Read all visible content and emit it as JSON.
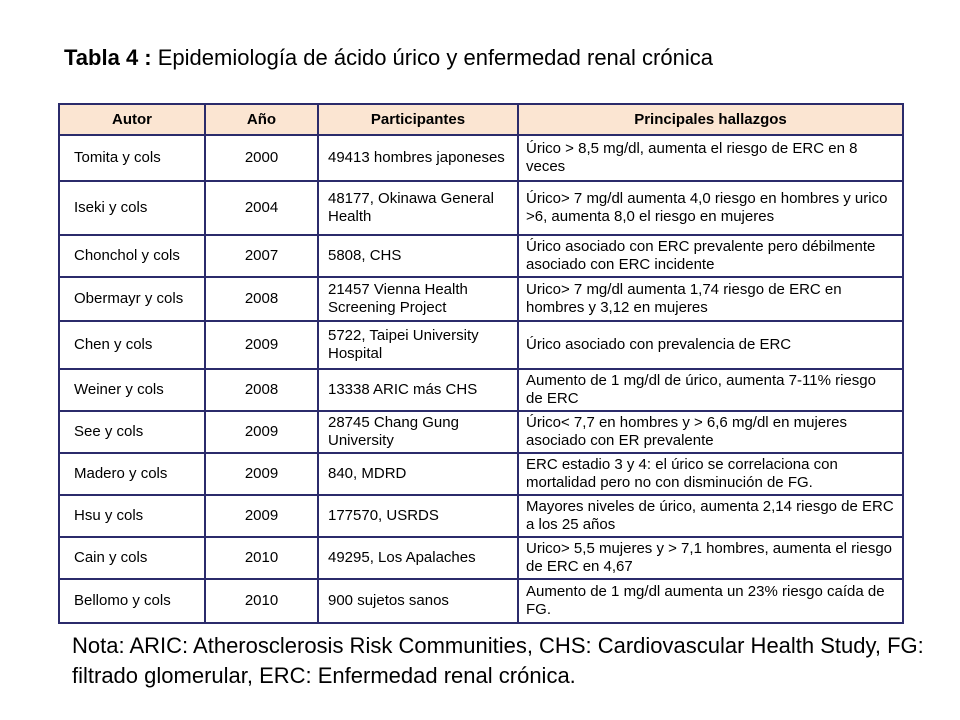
{
  "title": {
    "bold": "Tabla 4 :",
    "rest": " Epidemiología de ácido úrico y enfermedad renal crónica"
  },
  "table": {
    "headers": [
      "Autor",
      "Año",
      "Participantes",
      "Principales hallazgos"
    ],
    "rows": [
      {
        "author": "Tomita  y cols",
        "year": "2000",
        "participants": "49413 hombres japoneses",
        "findings": "Úrico > 8,5 mg/dl, aumenta el riesgo de ERC en 8 veces"
      },
      {
        "author": "Iseki y cols",
        "year": "2004",
        "participants": "48177, Okinawa General Health",
        "findings": "Úrico> 7 mg/dl aumenta 4,0 riesgo en hombres y urico >6, aumenta 8,0 el riesgo  en mujeres"
      },
      {
        "author": "Chonchol  y cols",
        "year": "2007",
        "participants": "5808, CHS",
        "findings": "Úrico asociado con ERC prevalente pero débilmente asociado con ERC incidente"
      },
      {
        "author": "Obermayr y cols",
        "year": "2008",
        "participants": "21457 Vienna Health Screening Project",
        "findings": "Urico> 7 mg/dl aumenta 1,74 riesgo de ERC en hombres y 3,12 en mujeres"
      },
      {
        "author": "Chen y cols",
        "year": "2009",
        "participants": "5722, Taipei University Hospital",
        "findings": "Úrico asociado con prevalencia de ERC"
      },
      {
        "author": "Weiner  y cols",
        "year": "2008",
        "participants": "13338 ARIC más CHS",
        "findings": "Aumento de 1 mg/dl de úrico, aumenta 7-11% riesgo de ERC"
      },
      {
        "author": "See y cols",
        "year": "2009",
        "participants": "28745 Chang Gung University",
        "findings": "Úrico< 7,7 en hombres y > 6,6 mg/dl en mujeres asociado con ER prevalente"
      },
      {
        "author": "Madero y cols",
        "year": "2009",
        "participants": "840, MDRD",
        "findings": "ERC estadio 3 y 4: el úrico se correlaciona con mortalidad pero no con disminución de FG."
      },
      {
        "author": "Hsu  y cols",
        "year": "2009",
        "participants": "177570, USRDS",
        "findings": "Mayores niveles de úrico, aumenta 2,14 riesgo de ERC a los 25 años"
      },
      {
        "author": "Cain  y cols",
        "year": "2010",
        "participants": "49295, Los Apalaches",
        "findings": "Urico> 5,5 mujeres y > 7,1 hombres, aumenta el riesgo de ERC en 4,67"
      },
      {
        "author": "Bellomo  y cols",
        "year": "2010",
        "participants": "900 sujetos sanos",
        "findings": "Aumento de 1 mg/dl aumenta un 23% riesgo caída de FG."
      }
    ]
  },
  "note": "Nota: ARIC: Atherosclerosis Risk Communities, CHS: Cardiovascular Health Study, FG: filtrado glomerular, ERC: Enfermedad renal crónica.",
  "colors": {
    "background": "#FFFFFF",
    "border": "#2B2B6B",
    "header_bg": "#FBE5D2",
    "text": "#000000"
  }
}
